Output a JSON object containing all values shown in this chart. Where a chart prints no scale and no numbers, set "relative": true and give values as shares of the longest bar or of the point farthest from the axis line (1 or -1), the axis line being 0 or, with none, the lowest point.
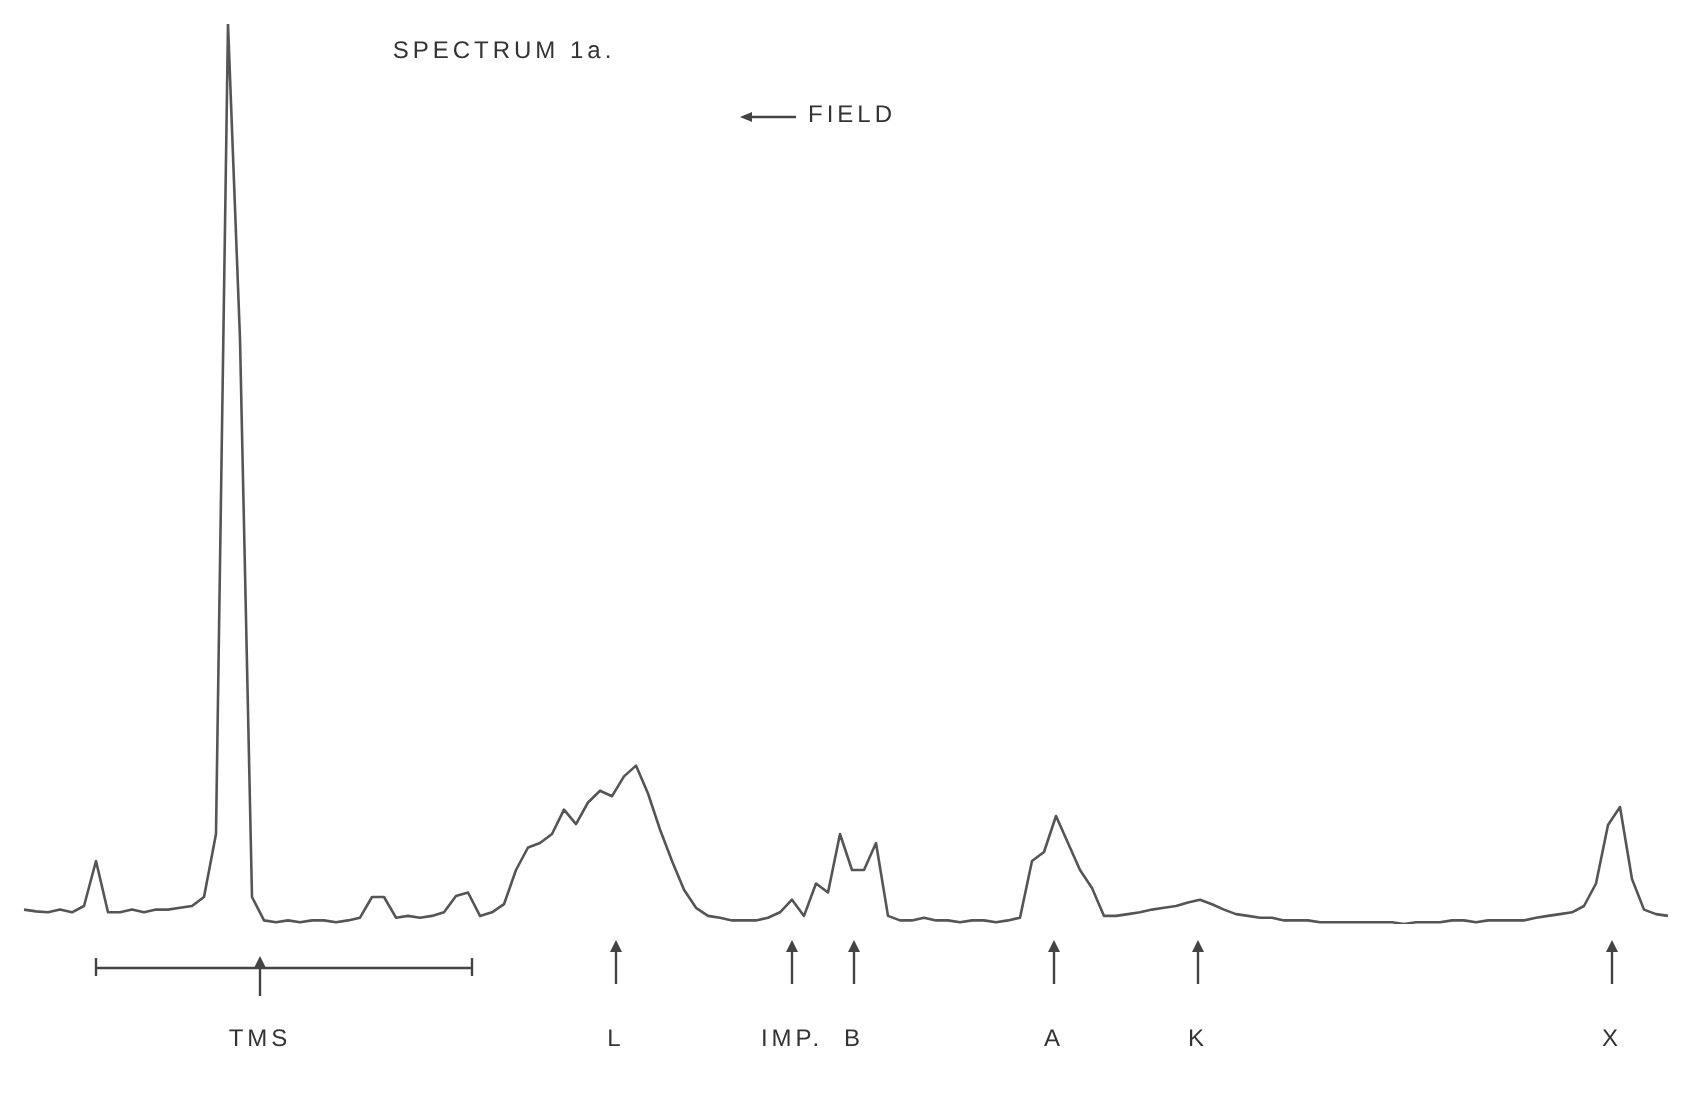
{
  "chart_data": {
    "type": "line",
    "title": "SPECTRUM 1a.",
    "relative": true,
    "legend": false,
    "marker": "none",
    "line_style": "solid",
    "annotations": [
      "FIELD",
      "TMS",
      "L",
      "IMP.",
      "B",
      "A",
      "K",
      "X"
    ],
    "categories": [
      null,
      null,
      null,
      null,
      null,
      null,
      null,
      null,
      null,
      null,
      null,
      null,
      null,
      null,
      null,
      null,
      null,
      null,
      null,
      null,
      null,
      null,
      null,
      null,
      null,
      null,
      null,
      null,
      null,
      null,
      null,
      null,
      null,
      null,
      null,
      null,
      null,
      null,
      null,
      null,
      null,
      null,
      null,
      null,
      null,
      null,
      null,
      null,
      null,
      null,
      null,
      null,
      null,
      null,
      null,
      null,
      null,
      null,
      null,
      null,
      null,
      null,
      null,
      null,
      null,
      null,
      null,
      null,
      null,
      null,
      null,
      null,
      null,
      null,
      null,
      null,
      null,
      null,
      null,
      null,
      null,
      null,
      null,
      null,
      null,
      null,
      null,
      null,
      null,
      null,
      null,
      null,
      null,
      null,
      null,
      null,
      null,
      null,
      null,
      null,
      null,
      null,
      null,
      null,
      null,
      null,
      null,
      null,
      null,
      null,
      null,
      null,
      null,
      null,
      null,
      null,
      null,
      null,
      null,
      null,
      null,
      null,
      null,
      null,
      null,
      null,
      null,
      null,
      null,
      null,
      null,
      null,
      null,
      null,
      null,
      null,
      null,
      null
    ],
    "series": [
      {
        "color": "#555555",
        "values": [
          0.016,
          0.014,
          0.013,
          0.016,
          0.013,
          0.02,
          0.07,
          0.013,
          0.013,
          0.016,
          0.013,
          0.016,
          0.016,
          0.018,
          0.02,
          0.03,
          0.1,
          1,
          0.65,
          0.03,
          0.004,
          0.002,
          0.004,
          0.002,
          0.004,
          0.004,
          0.002,
          0.004,
          0.007,
          0.03,
          0.03,
          0.007,
          0.009,
          0.007,
          0.009,
          0.013,
          0.031,
          0.035,
          0.009,
          0.013,
          0.022,
          0.06,
          0.085,
          0.09,
          0.1,
          0.127,
          0.111,
          0.135,
          0.148,
          0.142,
          0.164,
          0.176,
          0.145,
          0.105,
          0.07,
          0.038,
          0.018,
          0.009,
          0.007,
          0.004,
          0.004,
          0.004,
          0.007,
          0.013,
          0.027,
          0.009,
          0.045,
          0.035,
          0.1,
          0.06,
          0.06,
          0.09,
          0.009,
          0.004,
          0.004,
          0.007,
          0.004,
          0.004,
          0.002,
          0.004,
          0.004,
          0.002,
          0.004,
          0.007,
          0.07,
          0.08,
          0.12,
          0.09,
          0.06,
          0.04,
          0.009,
          0.009,
          0.011,
          0.013,
          0.016,
          0.018,
          0.02,
          0.024,
          0.027,
          0.022,
          0.016,
          0.011,
          0.009,
          0.007,
          0.007,
          0.004,
          0.004,
          0.004,
          0.002,
          0.002,
          0.002,
          0.002,
          0.002,
          0.002,
          0.002,
          0,
          0.002,
          0.002,
          0.002,
          0.004,
          0.004,
          0.002,
          0.004,
          0.004,
          0.004,
          0.004,
          0.007,
          0.009,
          0.011,
          0.013,
          0.02,
          0.045,
          0.11,
          0.13,
          0.05,
          0.016,
          0.011,
          0.009
        ]
      }
    ]
  }
}
